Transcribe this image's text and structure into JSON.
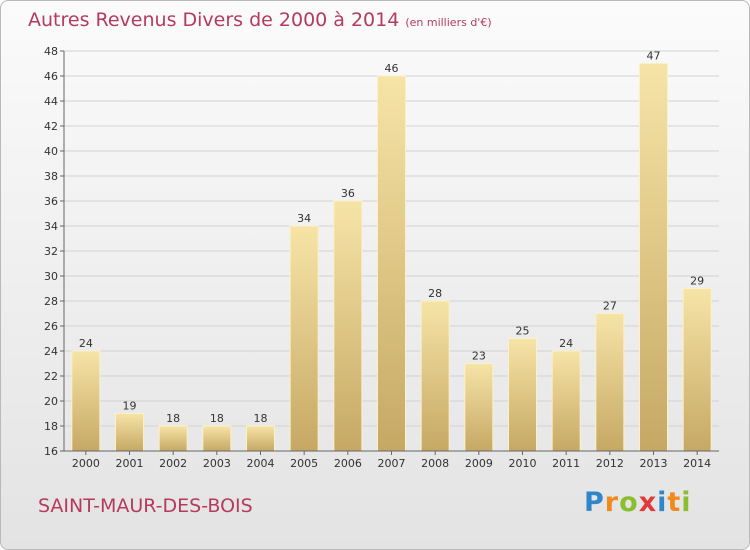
{
  "chart_data": {
    "type": "bar",
    "title": "Autres Revenus Divers de 2000 à 2014",
    "unit_note": "(en milliers d'€)",
    "categories": [
      "2000",
      "2001",
      "2002",
      "2003",
      "2004",
      "2005",
      "2006",
      "2007",
      "2008",
      "2009",
      "2010",
      "2011",
      "2012",
      "2013",
      "2014"
    ],
    "values": [
      24,
      19,
      18,
      18,
      18,
      34,
      36,
      46,
      28,
      23,
      25,
      24,
      27,
      47,
      29
    ],
    "ylim": [
      16,
      48
    ],
    "yticks": [
      16,
      18,
      20,
      22,
      24,
      26,
      28,
      30,
      32,
      34,
      36,
      38,
      40,
      42,
      44,
      46,
      48
    ],
    "grid": true,
    "bar_color": "#e9cd87",
    "bar_color_light": "#f6e4a7",
    "bar_color_dark": "#c6a864"
  },
  "commune": "SAINT-MAUR-DES-BOIS",
  "logo": {
    "text": "Proxiti",
    "letters": [
      {
        "ch": "P",
        "color": "#2f86c8"
      },
      {
        "ch": "r",
        "color": "#f08a1c"
      },
      {
        "ch": "o",
        "color": "#8bbd2e"
      },
      {
        "ch": "x",
        "color": "#e03a3a"
      },
      {
        "ch": "i",
        "color": "#2f86c8"
      },
      {
        "ch": "t",
        "color": "#f08a1c"
      },
      {
        "ch": "i",
        "color": "#8bbd2e"
      }
    ]
  },
  "colors": {
    "title": "#b53a5e",
    "axis_text": "#333333"
  }
}
